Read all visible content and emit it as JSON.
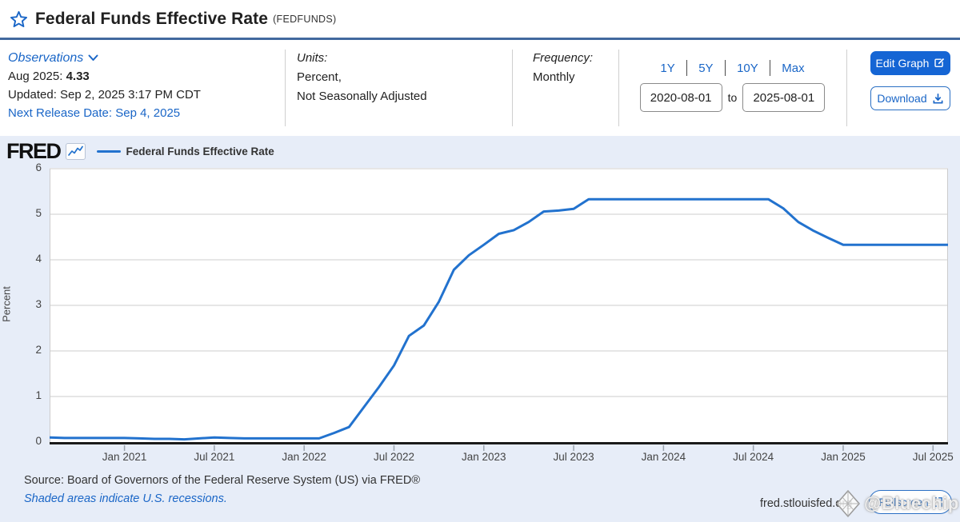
{
  "header": {
    "title": "Federal Funds Effective Rate",
    "ticker": "(FEDFUNDS)"
  },
  "info": {
    "observations": {
      "label": "Observations",
      "latest_label": "Aug 2025:",
      "latest_value": "4.33",
      "updated": "Updated: Sep 2, 2025 3:17 PM CDT",
      "next_release": "Next Release Date: Sep 4, 2025"
    },
    "units": {
      "label": "Units:",
      "line1": "Percent,",
      "line2": "Not Seasonally Adjusted"
    },
    "frequency": {
      "label": "Frequency:",
      "value": "Monthly"
    },
    "range": {
      "presets": [
        "1Y",
        "5Y",
        "10Y",
        "Max"
      ],
      "start": "2020-08-01",
      "to_label": "to",
      "end": "2025-08-01"
    },
    "actions": {
      "edit": "Edit Graph",
      "download": "Download"
    }
  },
  "graph": {
    "brand": "FRED",
    "legend": "Federal Funds Effective Rate",
    "footer": {
      "source": "Source: Board of Governors of the Federal Reserve System (US) via FRED®",
      "recessions_note": "Shaded areas indicate U.S. recessions.",
      "url": "fred.stlouisfed.org",
      "fullscreen": "Fullscreen",
      "watermark": "@Bluechip"
    }
  },
  "colors": {
    "accent_blue": "#1a66c7",
    "button_blue": "#1565d4",
    "line_blue": "#2272ce",
    "rule_blue": "#41699e",
    "section_bg": "#e7edf8",
    "gridline": "#cccccc",
    "axis_dark": "#1a1a1a"
  },
  "chart_data": {
    "type": "line",
    "title": "Federal Funds Effective Rate (FEDFUNDS)",
    "xlabel": "",
    "ylabel": "Percent",
    "ylim": [
      0,
      6
    ],
    "y_ticks": [
      0,
      1,
      2,
      3,
      4,
      5,
      6
    ],
    "grid": "horizontal",
    "legend_position": "top-left",
    "x_start": "2020-08",
    "x_end": "2025-08",
    "x_total_months": 60,
    "x_tick_labels": [
      "Jan 2021",
      "Jul 2021",
      "Jan 2022",
      "Jul 2022",
      "Jan 2023",
      "Jul 2023",
      "Jan 2024",
      "Jul 2024",
      "Jan 2025",
      "Jul 2025"
    ],
    "x_tick_month_index": [
      5,
      11,
      17,
      23,
      29,
      35,
      41,
      47,
      53,
      59
    ],
    "series": [
      {
        "name": "Federal Funds Effective Rate",
        "color": "#2272ce",
        "values": [
          0.1,
          0.09,
          0.09,
          0.09,
          0.09,
          0.09,
          0.08,
          0.07,
          0.07,
          0.06,
          0.08,
          0.1,
          0.09,
          0.08,
          0.08,
          0.08,
          0.08,
          0.08,
          0.08,
          0.2,
          0.33,
          0.77,
          1.21,
          1.68,
          2.33,
          2.56,
          3.08,
          3.78,
          4.1,
          4.33,
          4.57,
          4.65,
          4.83,
          5.06,
          5.08,
          5.12,
          5.33,
          5.33,
          5.33,
          5.33,
          5.33,
          5.33,
          5.33,
          5.33,
          5.33,
          5.33,
          5.33,
          5.33,
          5.33,
          5.13,
          4.83,
          4.64,
          4.48,
          4.33,
          4.33,
          4.33,
          4.33,
          4.33,
          4.33,
          4.33,
          4.33
        ]
      }
    ]
  }
}
